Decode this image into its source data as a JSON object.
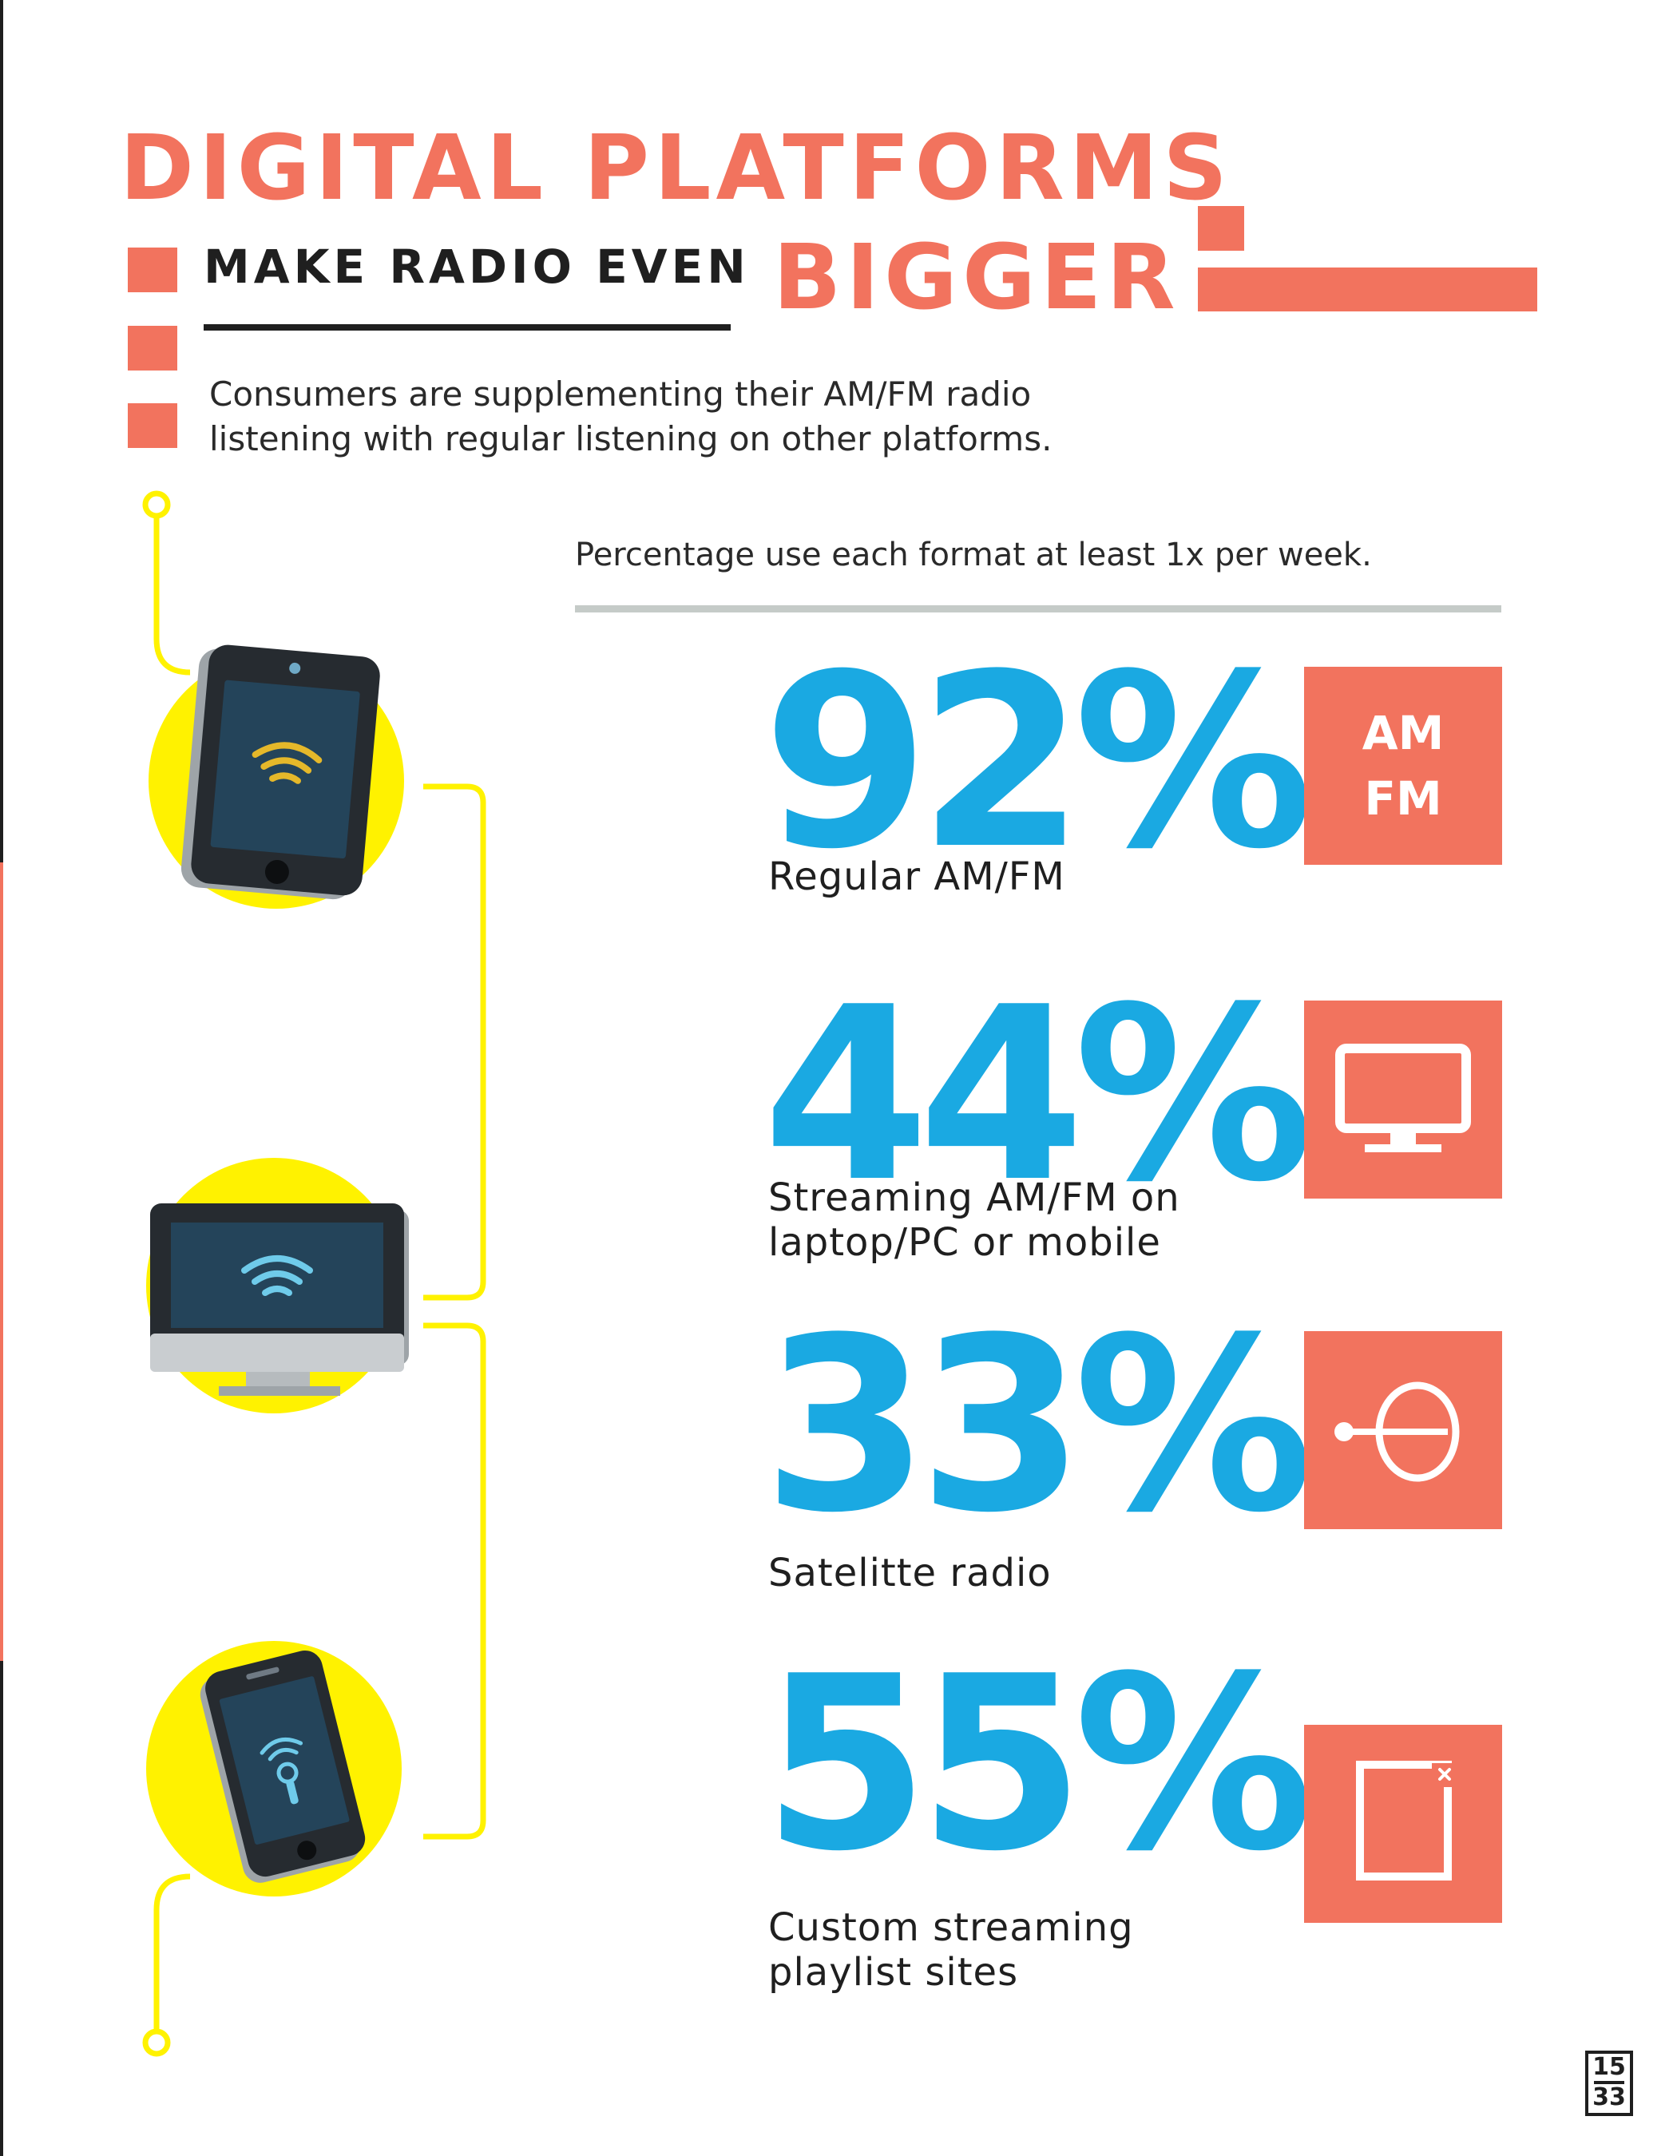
{
  "title": {
    "main": "DIGITAL PLATFORMS",
    "sub": "MAKE RADIO EVEN",
    "big": "BIGGER"
  },
  "intro": "Consumers are supplementing their AM/FM radio listening with regular listening on other platforms.",
  "caption": "Percentage use each format at least 1x per week.",
  "stats": [
    {
      "value": "92%",
      "label_lines": [
        "Regular AM/FM"
      ],
      "icon": "am-fm-text-icon",
      "icon_text": [
        "AM",
        "FM"
      ]
    },
    {
      "value": "44%",
      "label_lines": [
        "Streaming AM/FM on",
        "laptop/PC or mobile"
      ],
      "icon": "monitor-icon"
    },
    {
      "value": "33%",
      "label_lines": [
        "Satelitte radio"
      ],
      "icon": "satellite-icon"
    },
    {
      "value": "55%",
      "label_lines": [
        "Custom streaming",
        "playlist sites"
      ],
      "icon": "playlist-window-icon"
    }
  ],
  "devices": [
    "tablet-icon",
    "desktop-monitor-icon",
    "smartphone-icon"
  ],
  "page_number": {
    "current": "15",
    "total": "33"
  },
  "colors": {
    "coral": "#f2735e",
    "blue": "#1aa9e2",
    "yellow": "#fff200",
    "dark": "#1f1f1f",
    "rule_gray": "#c5cbc8"
  }
}
